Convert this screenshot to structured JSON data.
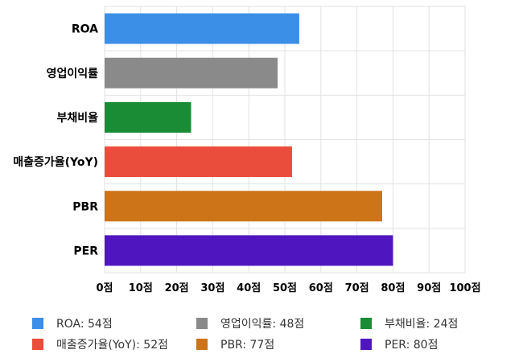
{
  "chart_data": {
    "type": "bar",
    "orientation": "horizontal",
    "categories": [
      "ROA",
      "영업이익률",
      "부채비율",
      "매출증가율(YoY)",
      "PBR",
      "PER"
    ],
    "values": [
      54,
      48,
      24,
      52,
      77,
      80
    ],
    "colors": [
      "#3b8fe6",
      "#8a8a8a",
      "#1a8c36",
      "#ea4d3b",
      "#cc7417",
      "#4f16bf"
    ],
    "xlim": [
      0,
      100
    ],
    "xticks": [
      "0점",
      "10점",
      "20점",
      "30점",
      "40점",
      "50점",
      "60점",
      "70점",
      "80점",
      "90점",
      "100점"
    ],
    "grid": true,
    "legend_position": "bottom"
  },
  "legend": [
    {
      "label": "ROA: 54점",
      "color": "#3b8fe6"
    },
    {
      "label": "영업이익률: 48점",
      "color": "#8a8a8a"
    },
    {
      "label": "부채비율: 24점",
      "color": "#1a8c36"
    },
    {
      "label": "매출증가율(YoY): 52점",
      "color": "#ea4d3b"
    },
    {
      "label": "PBR: 77점",
      "color": "#cc7417"
    },
    {
      "label": "PER: 80점",
      "color": "#4f16bf"
    }
  ]
}
